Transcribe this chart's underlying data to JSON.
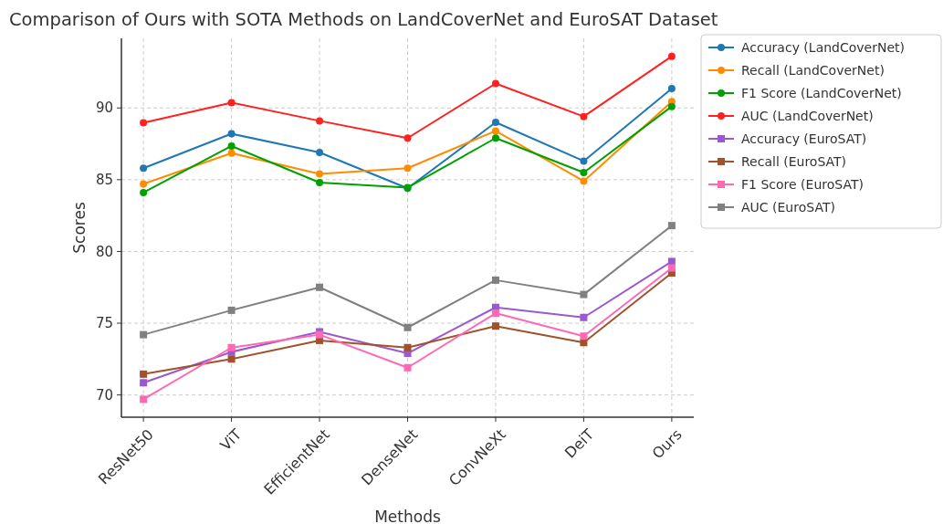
{
  "chart_data": {
    "type": "line",
    "title": "Comparison of Ours with SOTA Methods on LandCoverNet and EuroSAT Dataset",
    "xlabel": "Methods",
    "ylabel": "Scores",
    "categories": [
      "ResNet50",
      "ViT",
      "EfficientNet",
      "DenseNet",
      "ConvNeXt",
      "DeiT",
      "Ours"
    ],
    "ylim": [
      68.45,
      94.85
    ],
    "yticks": [
      70,
      75,
      80,
      85,
      90
    ],
    "grid": true,
    "legend": "top right",
    "series": [
      {
        "name": "Accuracy (LandCoverNet)",
        "color": "#1f77b4",
        "marker": "circle",
        "values": [
          85.8,
          88.2,
          86.9,
          84.4,
          89.0,
          86.3,
          91.35
        ]
      },
      {
        "name": "Recall (LandCoverNet)",
        "color": "#ff8c00",
        "marker": "circle",
        "values": [
          84.7,
          86.85,
          85.4,
          85.8,
          88.4,
          84.9,
          90.45
        ]
      },
      {
        "name": "F1 Score (LandCoverNet)",
        "color": "#00a000",
        "marker": "circle",
        "values": [
          84.1,
          87.35,
          84.8,
          84.45,
          87.9,
          85.5,
          90.1
        ]
      },
      {
        "name": "AUC (LandCoverNet)",
        "color": "#ff2020",
        "marker": "circle",
        "values": [
          88.96,
          90.37,
          89.1,
          87.9,
          91.7,
          89.4,
          93.6
        ]
      },
      {
        "name": "Accuracy (EuroSAT)",
        "color": "#9b59d0",
        "marker": "square",
        "values": [
          70.85,
          73.0,
          74.4,
          72.9,
          76.1,
          75.4,
          79.3
        ]
      },
      {
        "name": "Recall (EuroSAT)",
        "color": "#a0522d",
        "marker": "square",
        "values": [
          71.45,
          72.5,
          73.8,
          73.3,
          74.8,
          73.65,
          78.5
        ]
      },
      {
        "name": "F1 Score (EuroSAT)",
        "color": "#ff69b4",
        "marker": "square",
        "values": [
          69.7,
          73.3,
          74.2,
          71.9,
          75.7,
          74.1,
          78.85
        ]
      },
      {
        "name": "AUC (EuroSAT)",
        "color": "#808080",
        "marker": "square",
        "values": [
          74.2,
          75.9,
          77.5,
          74.7,
          78.0,
          77.0,
          81.8
        ]
      }
    ]
  }
}
